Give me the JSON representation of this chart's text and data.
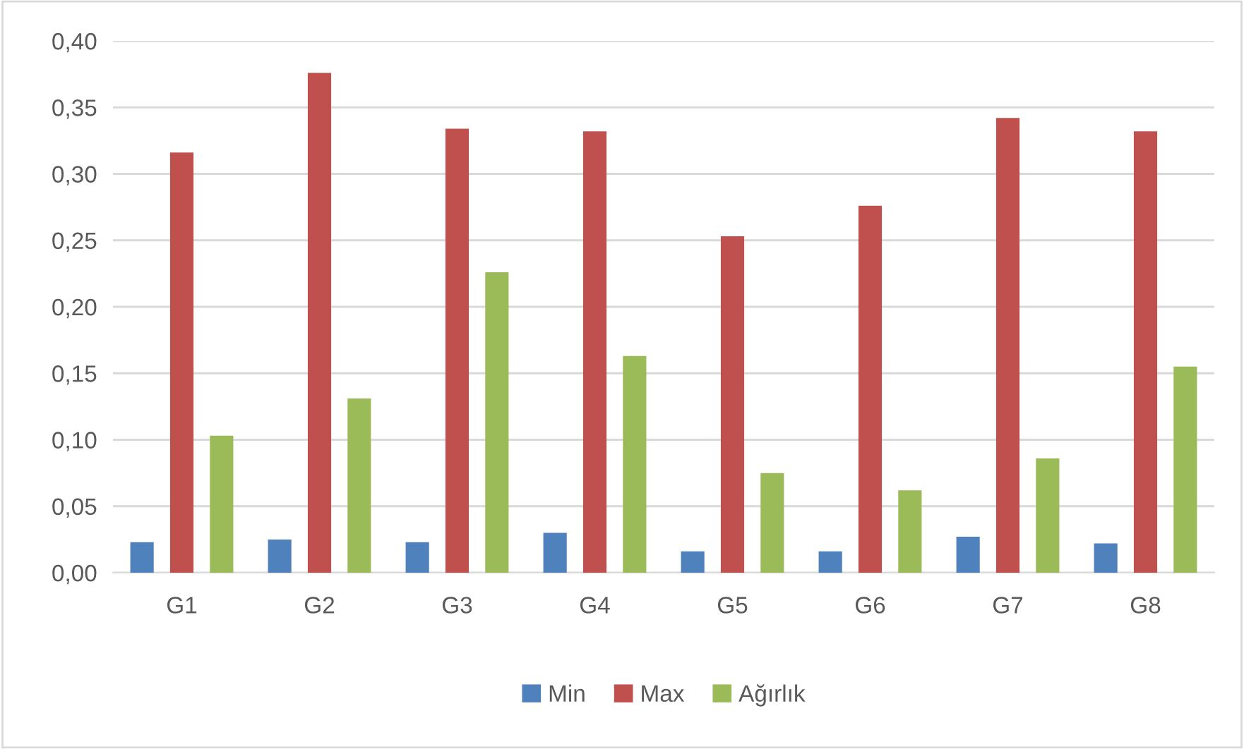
{
  "chart_data": {
    "type": "bar",
    "categories": [
      "G1",
      "G2",
      "G3",
      "G4",
      "G5",
      "G6",
      "G7",
      "G8"
    ],
    "series": [
      {
        "name": "Min",
        "color": "#4f81bd",
        "values": [
          0.023,
          0.025,
          0.023,
          0.03,
          0.016,
          0.016,
          0.027,
          0.022
        ]
      },
      {
        "name": "Max",
        "color": "#c0504d",
        "values": [
          0.316,
          0.376,
          0.334,
          0.332,
          0.253,
          0.276,
          0.342,
          0.332
        ]
      },
      {
        "name": "Ağırlık",
        "color": "#9bbb59",
        "values": [
          0.103,
          0.131,
          0.226,
          0.163,
          0.075,
          0.062,
          0.086,
          0.155
        ]
      }
    ],
    "ylim": [
      0,
      0.4
    ],
    "yticks": [
      {
        "value": 0,
        "label": "0,00"
      },
      {
        "value": 0.05,
        "label": "0,05"
      },
      {
        "value": 0.1,
        "label": "0,10"
      },
      {
        "value": 0.15,
        "label": "0,15"
      },
      {
        "value": 0.2,
        "label": "0,20"
      },
      {
        "value": 0.25,
        "label": "0,25"
      },
      {
        "value": 0.3,
        "label": "0,30"
      },
      {
        "value": 0.35,
        "label": "0,35"
      },
      {
        "value": 0.4,
        "label": "0,40"
      }
    ],
    "grid": "y",
    "legend": "bottom"
  }
}
